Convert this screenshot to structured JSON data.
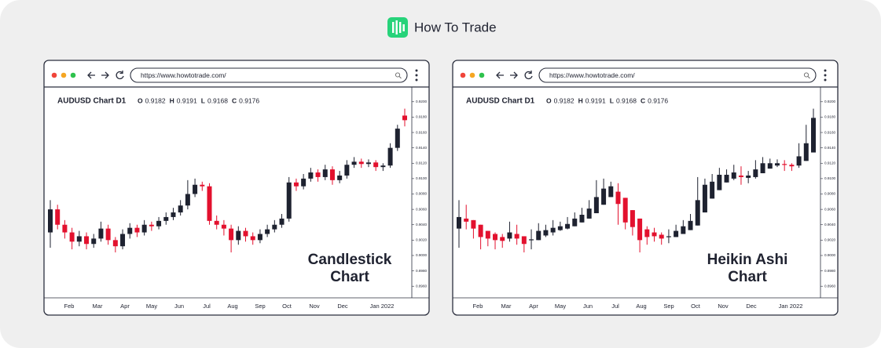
{
  "brand": "How To Trade",
  "chart_data": [
    {
      "type": "candlestick",
      "url": "https://www.howtotrade.com/",
      "title": "AUDUSD Chart D1",
      "info": [
        {
          "key": "O",
          "value": 0.9182
        },
        {
          "key": "H",
          "value": 0.9191
        },
        {
          "key": "L",
          "value": 0.9168
        },
        {
          "key": "C",
          "value": 0.9176
        }
      ],
      "label": [
        "Candlestick",
        "Chart"
      ],
      "up_color": "#1e2230",
      "down_color": "#e3112e",
      "categories": [
        "Feb",
        "Mar",
        "Apr",
        "May",
        "Jun",
        "Jul",
        "Aug",
        "Sep",
        "Oct",
        "Nov",
        "Dec",
        "Jan 2022"
      ],
      "open": [
        0.903,
        0.906,
        0.904,
        0.903,
        0.9018,
        0.9025,
        0.9015,
        0.9022,
        0.9035,
        0.902,
        0.9012,
        0.9028,
        0.9036,
        0.903,
        0.904,
        0.9038,
        0.9045,
        0.905,
        0.9056,
        0.9065,
        0.908,
        0.9092,
        0.909,
        0.9045,
        0.904,
        0.9035,
        0.902,
        0.9032,
        0.9025,
        0.902,
        0.9028,
        0.9034,
        0.904,
        0.9048,
        0.9095,
        0.909,
        0.91,
        0.9108,
        0.9102,
        0.9112,
        0.9098,
        0.9104,
        0.9118,
        0.9122,
        0.9119,
        0.9121,
        0.9115,
        0.9117,
        0.914,
        0.9182
      ],
      "high": [
        0.9072,
        0.9066,
        0.9046,
        0.9036,
        0.9032,
        0.903,
        0.9028,
        0.9044,
        0.904,
        0.9024,
        0.9034,
        0.9042,
        0.904,
        0.9046,
        0.9044,
        0.905,
        0.9056,
        0.9062,
        0.9072,
        0.9098,
        0.91,
        0.9096,
        0.9094,
        0.9052,
        0.9046,
        0.904,
        0.9038,
        0.9036,
        0.903,
        0.9034,
        0.904,
        0.9046,
        0.9054,
        0.9102,
        0.91,
        0.9106,
        0.9114,
        0.9112,
        0.9118,
        0.9116,
        0.911,
        0.9124,
        0.9128,
        0.9126,
        0.9125,
        0.9124,
        0.912,
        0.9146,
        0.917,
        0.9191
      ],
      "low": [
        0.901,
        0.9034,
        0.9022,
        0.9008,
        0.9012,
        0.9008,
        0.901,
        0.9018,
        0.9014,
        0.9004,
        0.9008,
        0.9022,
        0.9024,
        0.9026,
        0.9032,
        0.9034,
        0.904,
        0.9046,
        0.9052,
        0.906,
        0.9076,
        0.9084,
        0.904,
        0.9034,
        0.9026,
        0.9004,
        0.9014,
        0.9018,
        0.9014,
        0.9016,
        0.9024,
        0.903,
        0.9036,
        0.9044,
        0.9084,
        0.9086,
        0.9096,
        0.9096,
        0.9098,
        0.9092,
        0.9094,
        0.91,
        0.9114,
        0.9114,
        0.9115,
        0.911,
        0.911,
        0.9114,
        0.9136,
        0.9168
      ],
      "close": [
        0.906,
        0.904,
        0.903,
        0.9018,
        0.9025,
        0.9015,
        0.9022,
        0.9035,
        0.902,
        0.9012,
        0.9028,
        0.9036,
        0.903,
        0.904,
        0.9038,
        0.9045,
        0.905,
        0.9056,
        0.9065,
        0.908,
        0.9092,
        0.909,
        0.9045,
        0.904,
        0.9035,
        0.902,
        0.9032,
        0.9025,
        0.902,
        0.9028,
        0.9034,
        0.904,
        0.9048,
        0.9095,
        0.909,
        0.91,
        0.9108,
        0.9102,
        0.9112,
        0.9098,
        0.9104,
        0.9118,
        0.9122,
        0.9119,
        0.9121,
        0.9115,
        0.9117,
        0.914,
        0.9165,
        0.9176
      ],
      "ylim": [
        0.895,
        0.921
      ],
      "yticks": [
        {
          "value": 0.896,
          "label": "0.8960"
        },
        {
          "value": 0.898,
          "label": "0.8980"
        },
        {
          "value": 0.9,
          "label": "0.9000"
        },
        {
          "value": 0.902,
          "label": "0.9020"
        },
        {
          "value": 0.904,
          "label": "0.9040"
        },
        {
          "value": 0.906,
          "label": "0.9060"
        },
        {
          "value": 0.908,
          "label": "0.9080"
        },
        {
          "value": 0.91,
          "label": "0.9100"
        },
        {
          "value": 0.912,
          "label": "0.9120"
        },
        {
          "value": 0.914,
          "label": "0.9140"
        },
        {
          "value": 0.916,
          "label": "0.9160"
        },
        {
          "value": 0.918,
          "label": "0.9180"
        },
        {
          "value": 0.92,
          "label": "0.9200"
        }
      ]
    },
    {
      "type": "candlestick",
      "url": "https://www.howtotrade.com/",
      "title": "AUDUSD Chart D1",
      "info": [
        {
          "key": "O",
          "value": 0.9182
        },
        {
          "key": "H",
          "value": 0.9191
        },
        {
          "key": "L",
          "value": 0.9168
        },
        {
          "key": "C",
          "value": 0.9176
        }
      ],
      "label": [
        "Heikin Ashi",
        "Chart"
      ],
      "up_color": "#1e2230",
      "down_color": "#e3112e",
      "categories": [
        "Feb",
        "Mar",
        "Apr",
        "May",
        "Jun",
        "Jul",
        "Aug",
        "Sep",
        "Oct",
        "Nov",
        "Dec",
        "Jan 2022"
      ],
      "open": [
        0.9035,
        0.9048,
        0.9046,
        0.904,
        0.9032,
        0.9028,
        0.9024,
        0.9022,
        0.9028,
        0.9025,
        0.902,
        0.902,
        0.9026,
        0.903,
        0.9033,
        0.9035,
        0.9038,
        0.9043,
        0.9048,
        0.9055,
        0.9066,
        0.9076,
        0.9083,
        0.9075,
        0.9059,
        0.9048,
        0.9034,
        0.903,
        0.9027,
        0.9024,
        0.9024,
        0.9028,
        0.9033,
        0.9039,
        0.9056,
        0.9074,
        0.9085,
        0.9095,
        0.91,
        0.9104,
        0.9101,
        0.9102,
        0.9107,
        0.9113,
        0.9117,
        0.9119,
        0.9118,
        0.9117,
        0.9123,
        0.9134
      ],
      "high": [
        0.9072,
        0.9066,
        0.9046,
        0.904,
        0.9032,
        0.903,
        0.9028,
        0.9044,
        0.904,
        0.9025,
        0.9034,
        0.9042,
        0.904,
        0.9046,
        0.9044,
        0.905,
        0.9056,
        0.9062,
        0.9072,
        0.9098,
        0.91,
        0.9096,
        0.9094,
        0.9075,
        0.9059,
        0.9048,
        0.9038,
        0.9036,
        0.903,
        0.9034,
        0.904,
        0.9046,
        0.9054,
        0.9102,
        0.91,
        0.9106,
        0.9114,
        0.9112,
        0.9118,
        0.9116,
        0.911,
        0.9124,
        0.9128,
        0.9126,
        0.9125,
        0.9124,
        0.912,
        0.9146,
        0.917,
        0.9191
      ],
      "low": [
        0.901,
        0.9034,
        0.9022,
        0.9008,
        0.9012,
        0.9008,
        0.901,
        0.9018,
        0.9014,
        0.9004,
        0.9008,
        0.902,
        0.9024,
        0.9026,
        0.9032,
        0.9034,
        0.9038,
        0.9043,
        0.9048,
        0.9055,
        0.9066,
        0.9076,
        0.904,
        0.9034,
        0.9026,
        0.9004,
        0.9014,
        0.9018,
        0.9014,
        0.9016,
        0.9024,
        0.9028,
        0.9033,
        0.9039,
        0.9056,
        0.9074,
        0.9085,
        0.9095,
        0.9098,
        0.9092,
        0.9094,
        0.91,
        0.9107,
        0.9113,
        0.9115,
        0.911,
        0.911,
        0.9114,
        0.9123,
        0.9134
      ],
      "close": [
        0.905,
        0.9044,
        0.9035,
        0.9024,
        0.9022,
        0.902,
        0.9019,
        0.903,
        0.9022,
        0.9015,
        0.9021,
        0.9032,
        0.9033,
        0.9036,
        0.9038,
        0.9041,
        0.9048,
        0.9053,
        0.9061,
        0.9076,
        0.9087,
        0.909,
        0.9067,
        0.9043,
        0.9037,
        0.902,
        0.9024,
        0.9025,
        0.9022,
        0.9025,
        0.9032,
        0.9038,
        0.9045,
        0.9072,
        0.9092,
        0.9096,
        0.9105,
        0.9105,
        0.9108,
        0.9102,
        0.9104,
        0.9112,
        0.912,
        0.912,
        0.912,
        0.9118,
        0.9116,
        0.9129,
        0.9146,
        0.9179
      ],
      "ylim": [
        0.895,
        0.921
      ],
      "yticks": [
        {
          "value": 0.896,
          "label": "0.8960"
        },
        {
          "value": 0.898,
          "label": "0.8980"
        },
        {
          "value": 0.9,
          "label": "0.9000"
        },
        {
          "value": 0.902,
          "label": "0.9020"
        },
        {
          "value": 0.904,
          "label": "0.9040"
        },
        {
          "value": 0.906,
          "label": "0.9060"
        },
        {
          "value": 0.908,
          "label": "0.9080"
        },
        {
          "value": 0.91,
          "label": "0.9100"
        },
        {
          "value": 0.912,
          "label": "0.9120"
        },
        {
          "value": 0.914,
          "label": "0.9140"
        },
        {
          "value": 0.916,
          "label": "0.9160"
        },
        {
          "value": 0.918,
          "label": "0.9180"
        },
        {
          "value": 0.92,
          "label": "0.9200"
        }
      ]
    }
  ]
}
